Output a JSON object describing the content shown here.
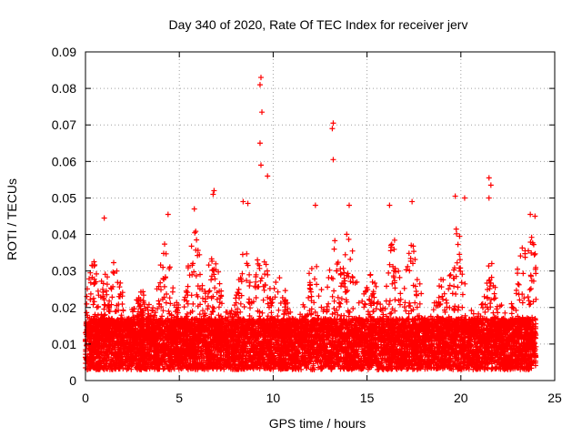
{
  "chart_data": {
    "type": "scatter",
    "title": "Day 340 of 2020, Rate Of TEC Index for receiver jerv",
    "xlabel": "GPS time / hours",
    "ylabel": "ROTI / TECUs",
    "xlim": [
      0,
      25
    ],
    "ylim": [
      0,
      0.09
    ],
    "x_ticks": [
      0,
      5,
      10,
      15,
      20,
      25
    ],
    "x_tick_labels": [
      "0",
      "5",
      "10",
      "15",
      "20",
      "25"
    ],
    "y_ticks": [
      0,
      0.01,
      0.02,
      0.03,
      0.04,
      0.05,
      0.06,
      0.07,
      0.08,
      0.09
    ],
    "y_tick_labels": [
      "0",
      "0.01",
      "0.02",
      "0.03",
      "0.04",
      "0.05",
      "0.06",
      "0.07",
      "0.08",
      "0.09"
    ],
    "grid": true,
    "marker": "+",
    "color": "#ff0000",
    "series": [
      {
        "name": "ROTI",
        "x_range": [
          0,
          24
        ],
        "baseline_min": 0.003,
        "baseline_max": 0.017,
        "notable_points": [
          {
            "x": 9.35,
            "y": 0.083
          },
          {
            "x": 9.3,
            "y": 0.081
          },
          {
            "x": 9.4,
            "y": 0.0735
          },
          {
            "x": 9.3,
            "y": 0.065
          },
          {
            "x": 9.35,
            "y": 0.059
          },
          {
            "x": 9.7,
            "y": 0.056
          },
          {
            "x": 13.2,
            "y": 0.0705
          },
          {
            "x": 13.15,
            "y": 0.069
          },
          {
            "x": 13.2,
            "y": 0.0605
          },
          {
            "x": 21.5,
            "y": 0.0555
          },
          {
            "x": 21.6,
            "y": 0.0535
          },
          {
            "x": 21.5,
            "y": 0.05
          },
          {
            "x": 19.7,
            "y": 0.0505
          },
          {
            "x": 20.2,
            "y": 0.05
          },
          {
            "x": 6.85,
            "y": 0.052
          },
          {
            "x": 6.8,
            "y": 0.051
          },
          {
            "x": 8.4,
            "y": 0.049
          },
          {
            "x": 8.65,
            "y": 0.0485
          },
          {
            "x": 17.4,
            "y": 0.049
          },
          {
            "x": 1.0,
            "y": 0.0445
          },
          {
            "x": 4.4,
            "y": 0.0455
          },
          {
            "x": 5.8,
            "y": 0.047
          },
          {
            "x": 23.7,
            "y": 0.0455
          },
          {
            "x": 23.95,
            "y": 0.045
          },
          {
            "x": 12.25,
            "y": 0.048
          },
          {
            "x": 14.05,
            "y": 0.048
          },
          {
            "x": 16.2,
            "y": 0.048
          }
        ]
      }
    ]
  }
}
